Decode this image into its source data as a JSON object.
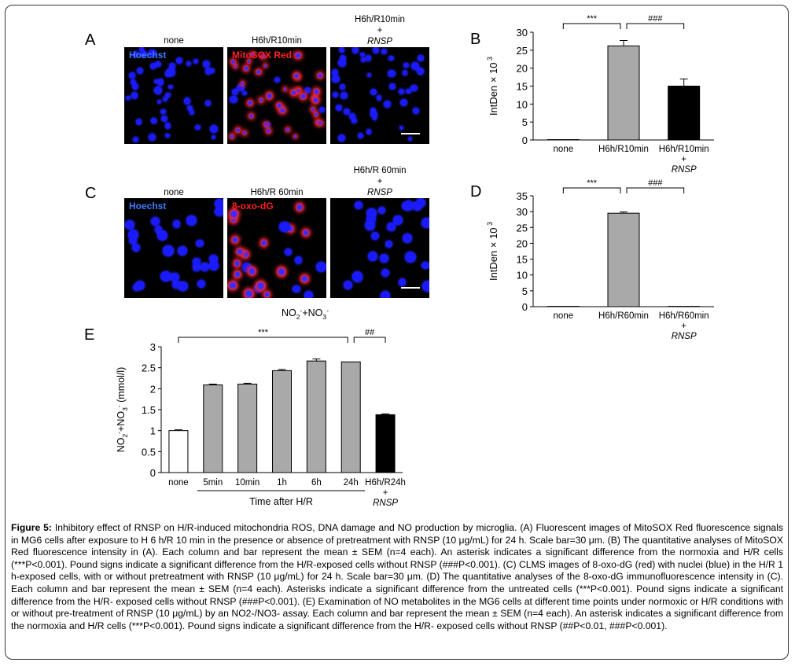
{
  "panels": {
    "A": {
      "letter": "A",
      "columns": [
        "none",
        "H6h/R10min",
        "H6h/R10min\n+\nRNSP"
      ],
      "stains": [
        "Hoechst",
        "MitoSOX Red"
      ]
    },
    "C": {
      "letter": "C",
      "columns": [
        "none",
        "H6h/R 60min",
        "H6h/R 60min\n+\nRNSP"
      ],
      "stains": [
        "Hoechst",
        "8-oxo-dG"
      ]
    },
    "colors": {
      "nuclei": "#1a1aff",
      "red_stain": "#ff2020",
      "gray_bar": "#a9a9a9",
      "black_bar": "#000000"
    }
  },
  "chart_data": [
    {
      "id": "B",
      "letter": "B",
      "type": "bar",
      "categories": [
        "none",
        "H6h/R10min",
        "H6h/R10min\n+\nRNSP"
      ],
      "values": [
        0.1,
        26.2,
        15.0
      ],
      "errors": [
        0,
        1.5,
        2.0
      ],
      "colors": [
        "#ffffff",
        "#a9a9a9",
        "#000000"
      ],
      "ylabel": "IntDen  × 10",
      "ylabel_sup": "3",
      "ylim": [
        0,
        30
      ],
      "yticks": [
        0,
        5,
        10,
        15,
        20,
        25,
        30
      ],
      "brackets": [
        {
          "from": 0,
          "to": 1,
          "label": "***"
        },
        {
          "from": 1,
          "to": 2,
          "label": "###"
        }
      ]
    },
    {
      "id": "D",
      "letter": "D",
      "type": "bar",
      "categories": [
        "none",
        "H6h/R60min",
        "H6h/R60min\n+\nRNSP"
      ],
      "values": [
        0.1,
        29.5,
        0.1
      ],
      "errors": [
        0,
        0.4,
        0
      ],
      "colors": [
        "#ffffff",
        "#a9a9a9",
        "#000000"
      ],
      "ylabel": "IntDen  × 10",
      "ylabel_sup": "3",
      "ylim": [
        0,
        35
      ],
      "yticks": [
        0,
        5,
        10,
        15,
        20,
        25,
        30,
        35
      ],
      "brackets": [
        {
          "from": 0,
          "to": 1,
          "label": "***"
        },
        {
          "from": 1,
          "to": 2,
          "label": "###"
        }
      ]
    },
    {
      "id": "E",
      "letter": "E",
      "type": "bar",
      "title": "NO2-+NO3-",
      "categories": [
        "none",
        "5min",
        "10min",
        "1h",
        "6h",
        "24h",
        "H6h/R24h\n+\nRNSP"
      ],
      "values": [
        1.0,
        2.09,
        2.11,
        2.43,
        2.66,
        2.64,
        1.38
      ],
      "errors": [
        0.02,
        0.02,
        0.02,
        0.03,
        0.05,
        0.0,
        0.02
      ],
      "colors": [
        "#ffffff",
        "#a9a9a9",
        "#a9a9a9",
        "#a9a9a9",
        "#a9a9a9",
        "#a9a9a9",
        "#000000"
      ],
      "ylabel": "NO2-+NO3- (mmol/l)",
      "ylim": [
        0,
        3
      ],
      "yticks": [
        0,
        0.5,
        1,
        1.5,
        2,
        2.5,
        3
      ],
      "xgroup_label": "Time after H/R",
      "brackets": [
        {
          "from": 0,
          "to": 5,
          "label": "***"
        },
        {
          "from": 5,
          "to": 6,
          "label": "##"
        }
      ]
    }
  ],
  "caption": {
    "label": "Figure 5:",
    "text": " Inhibitory effect of RNSP on H/R-induced mitochondria ROS, DNA damage and NO production by microglia. (A) Fluorescent images of MitoSOX Red fluorescence signals in MG6 cells after exposure to H 6 h/R 10 min in the presence or absence of pretreatment with RNSP (10 μg/mL) for 24 h. Scale bar=30 μm. (B) The quantitative analyses of MitoSOX Red fluorescence intensity in (A). Each column and bar represent the mean ± SEM (n=4 each). An asterisk indicates a significant difference from the normoxia and H/R cells (***P<0.001). Pound signs indicate a significant difference from the H/R-exposed cells without RNSP (###P<0.001). (C) CLMS images of 8-oxo-dG (red) with nuclei (blue) in the H/R 1 h-exposed cells, with or without pretreatment with RNSP (10 μg/mL) for 24 h. Scale bar=30 μm. (D) The quantitative analyses of the 8-oxo-dG immunofluorescence intensity in (C). Each column and bar represent the mean ± SEM (n=4 each). Asterisks indicate a significant difference from the untreated cells (***P<0.001). Pound signs indicate a significant difference from the H/R- exposed cells without RNSP (###P<0.001). (E) Examination of NO metabolites in the MG6 cells at different time points under normoxic or H/R conditions with or without pre-treatment of RNSP (10 μg/mL) by an NO2-/NO3- assay. Each column and bar represent the mean ± SEM (n=4 each). An asterisk indicates a significant difference from the normoxia and H/R cells (***P<0.001). Pound signs indicate a significant difference from the H/R- exposed cells without RNSP (##P<0.01, ###P<0.001)."
  }
}
